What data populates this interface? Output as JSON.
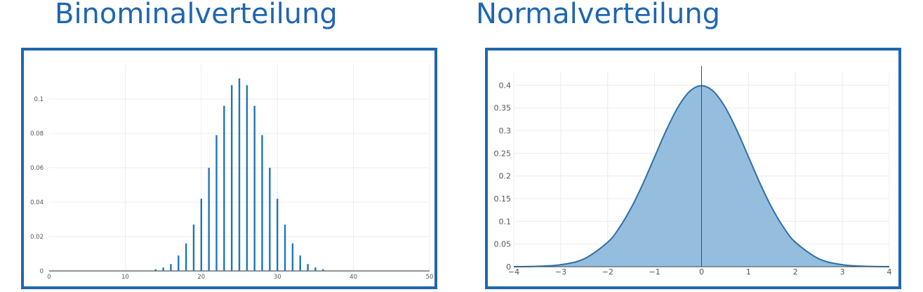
{
  "titles": {
    "left": "Binominalverteilung",
    "right": "Normalverteilung"
  },
  "colors": {
    "title": "#1f66b0",
    "frame": "#1f66b0",
    "bars": "#1f77b4",
    "curve": "#2f6fa6",
    "fill": "#8fb9dc",
    "grid": "#ececec"
  },
  "chart_data": [
    {
      "type": "bar",
      "title": "",
      "xlabel": "",
      "ylabel": "",
      "xlim": [
        0,
        50
      ],
      "ylim": [
        0,
        0.12
      ],
      "x_ticks": [
        "0",
        "10",
        "20",
        "30",
        "40",
        "50"
      ],
      "y_ticks": [
        "0",
        "0.02",
        "0.04",
        "0.06",
        "0.08",
        "0.1"
      ],
      "grid": true,
      "x": [
        14,
        15,
        16,
        17,
        18,
        19,
        20,
        21,
        22,
        23,
        24,
        25,
        26,
        27,
        28,
        29,
        30,
        31,
        32,
        33,
        34,
        35,
        36
      ],
      "values": [
        0.001,
        0.002,
        0.004,
        0.009,
        0.016,
        0.027,
        0.042,
        0.06,
        0.079,
        0.096,
        0.108,
        0.112,
        0.108,
        0.096,
        0.079,
        0.06,
        0.042,
        0.027,
        0.016,
        0.009,
        0.004,
        0.002,
        0.001
      ]
    },
    {
      "type": "area",
      "title": "",
      "xlabel": "",
      "ylabel": "",
      "xlim": [
        -4,
        4
      ],
      "ylim": [
        0,
        0.43
      ],
      "x_ticks": [
        "−4",
        "−3",
        "−2",
        "−1",
        "0",
        "1",
        "2",
        "3",
        "4"
      ],
      "y_ticks": [
        "0",
        "0.05",
        "0.1",
        "0.15",
        "0.2",
        "0.25",
        "0.3",
        "0.35",
        "0.4"
      ],
      "grid": true,
      "x": [
        -4,
        -3.5,
        -3,
        -2.5,
        -2,
        -1.75,
        -1.5,
        -1.25,
        -1,
        -0.75,
        -0.5,
        -0.25,
        0,
        0.25,
        0.5,
        0.75,
        1,
        1.25,
        1.5,
        1.75,
        2,
        2.5,
        3,
        3.5,
        4
      ],
      "y": [
        0.0001,
        0.0009,
        0.0044,
        0.0175,
        0.054,
        0.0863,
        0.1295,
        0.1826,
        0.242,
        0.3011,
        0.3521,
        0.3867,
        0.3989,
        0.3867,
        0.3521,
        0.3011,
        0.242,
        0.1826,
        0.1295,
        0.0863,
        0.054,
        0.0175,
        0.0044,
        0.0009,
        0.0001
      ]
    }
  ]
}
